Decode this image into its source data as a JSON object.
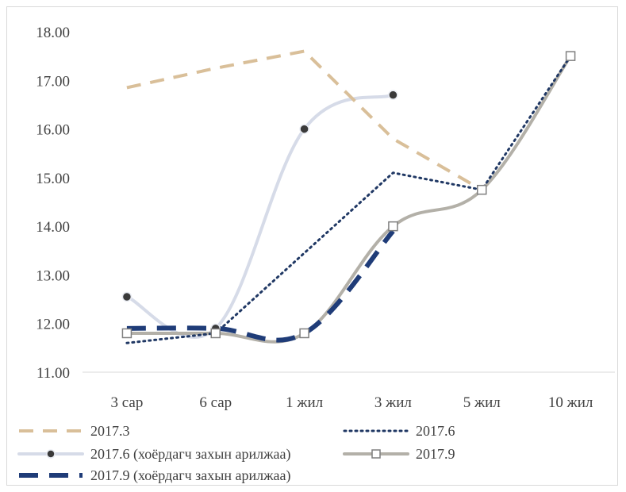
{
  "chart_data": {
    "type": "line",
    "title": "",
    "xlabel": "",
    "ylabel": "",
    "categories": [
      "3 сар",
      "6 сар",
      "1 жил",
      "3 жил",
      "5 жил",
      "10 жил"
    ],
    "ylim": [
      11.0,
      18.0
    ],
    "yticks": [
      "11.00",
      "12.00",
      "13.00",
      "14.00",
      "15.00",
      "16.00",
      "17.00",
      "18.00"
    ],
    "grid": false,
    "legend_position": "bottom",
    "series": [
      {
        "name": "2017.3",
        "values": [
          16.85,
          17.25,
          17.6,
          15.8,
          14.75,
          null
        ],
        "color": "#d9bf99",
        "style": "dash",
        "marker": "none"
      },
      {
        "name": "2017.6",
        "values": [
          11.6,
          11.8,
          13.45,
          15.1,
          14.75,
          17.5
        ],
        "color": "#203864",
        "style": "dot",
        "marker": "none"
      },
      {
        "name": "2017.6 (хоёрдагч захын арилжаа)",
        "values": [
          12.55,
          11.9,
          16.0,
          16.7,
          null,
          null
        ],
        "color": "#d6dbe8",
        "style": "solid",
        "marker": "circle"
      },
      {
        "name": "2017.9",
        "values": [
          11.8,
          11.8,
          11.8,
          14.0,
          14.75,
          17.5
        ],
        "color": "#b3b0a8",
        "style": "solid",
        "marker": "square"
      },
      {
        "name": "2017.9 (хоёрдагч захын арилжаа)",
        "values": [
          11.9,
          11.9,
          11.8,
          13.9,
          null,
          null
        ],
        "color": "#1f3c78",
        "style": "longdash",
        "marker": "none"
      }
    ]
  }
}
